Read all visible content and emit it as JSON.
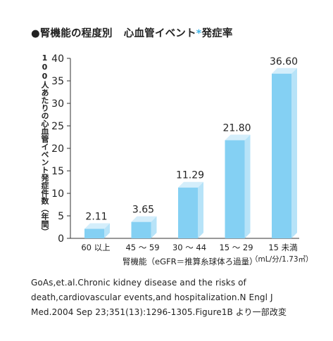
{
  "title": {
    "prefix": "●腎機能の程度別",
    "main": "心血管イベント",
    "star": "*",
    "suffix": "発症率"
  },
  "chart_data": {
    "type": "bar",
    "categories": [
      "60 以上",
      "45 ～ 59",
      "30 ～ 44",
      "15 ～ 29",
      "15 未満"
    ],
    "values": [
      2.11,
      3.65,
      11.29,
      21.8,
      36.6
    ],
    "value_labels": [
      "2.11",
      "3.65",
      "11.29",
      "21.80",
      "36.60"
    ],
    "ylabel": "100人あたりの心血管イベント発症件数（年間）",
    "xlabel": "腎機能（eGFR＝推算糸球体ろ過量）",
    "unit": "（mL/分/1.73㎡）",
    "ylim": [
      0,
      40
    ],
    "yticks": [
      "0",
      "5",
      "10",
      "15",
      "20",
      "25",
      "30",
      "35",
      "40"
    ],
    "bar_color": "#84d0f3",
    "bar_side_color": "#b7e3f8",
    "bar_top_color": "#d4eefb",
    "grid": false,
    "legend": "none"
  },
  "caption": [
    "GoAs,et.al.Chronic kidney disease and the risks of",
    "death,cardiovascular events,and hospitalization.N Engl J",
    "Med.2004 Sep 23;351(13):1296-1305.Figure1B より一部改変"
  ]
}
